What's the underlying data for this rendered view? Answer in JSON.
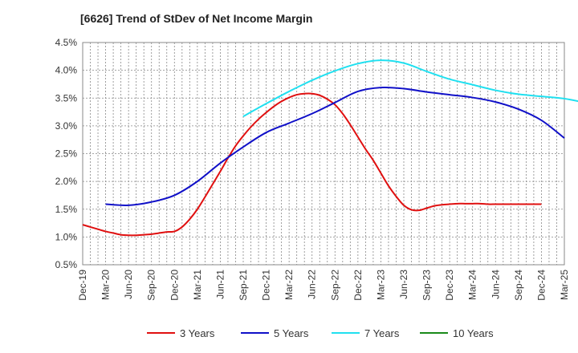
{
  "chart_data": {
    "type": "line",
    "title": "[6626]  Trend of StDev of Net Income Margin",
    "xlabel": "",
    "ylabel": "",
    "ylim": [
      0.5,
      4.5
    ],
    "yticks": [
      "0.5%",
      "1.0%",
      "1.5%",
      "2.0%",
      "2.5%",
      "3.0%",
      "3.5%",
      "4.0%",
      "4.5%"
    ],
    "ytick_values": [
      0.5,
      1.0,
      1.5,
      2.0,
      2.5,
      3.0,
      3.5,
      4.0,
      4.5
    ],
    "x_categories": [
      "Dec-19",
      "Mar-20",
      "Jun-20",
      "Sep-20",
      "Dec-20",
      "Mar-21",
      "Jun-21",
      "Sep-21",
      "Dec-21",
      "Mar-22",
      "Jun-22",
      "Sep-22",
      "Dec-22",
      "Mar-23",
      "Jun-23",
      "Sep-23",
      "Dec-23",
      "Mar-24",
      "Jun-24",
      "Sep-24",
      "Dec-24",
      "Mar-25"
    ],
    "grid": true,
    "legend_position": "bottom",
    "series": [
      {
        "name": "3 Years",
        "color": "#e01010",
        "points": [
          [
            "Dec-19",
            1.22
          ],
          [
            "Jan-20",
            1.18
          ],
          [
            "Feb-20",
            1.14
          ],
          [
            "Mar-20",
            1.1
          ],
          [
            "Apr-20",
            1.07
          ],
          [
            "May-20",
            1.04
          ],
          [
            "Jun-20",
            1.03
          ],
          [
            "Jul-20",
            1.03
          ],
          [
            "Aug-20",
            1.04
          ],
          [
            "Sep-20",
            1.05
          ],
          [
            "Oct-20",
            1.07
          ],
          [
            "Nov-20",
            1.09
          ],
          [
            "Dec-20",
            1.1
          ],
          [
            "Jan-21",
            1.18
          ],
          [
            "Feb-21",
            1.32
          ],
          [
            "Mar-21",
            1.5
          ],
          [
            "Apr-21",
            1.72
          ],
          [
            "May-21",
            1.95
          ],
          [
            "Jun-21",
            2.18
          ],
          [
            "Jul-21",
            2.42
          ],
          [
            "Aug-21",
            2.64
          ],
          [
            "Sep-21",
            2.82
          ],
          [
            "Oct-21",
            2.98
          ],
          [
            "Nov-21",
            3.12
          ],
          [
            "Dec-21",
            3.24
          ],
          [
            "Jan-22",
            3.35
          ],
          [
            "Feb-22",
            3.44
          ],
          [
            "Mar-22",
            3.51
          ],
          [
            "Apr-22",
            3.56
          ],
          [
            "May-22",
            3.58
          ],
          [
            "Jun-22",
            3.58
          ],
          [
            "Jul-22",
            3.55
          ],
          [
            "Aug-22",
            3.48
          ],
          [
            "Sep-22",
            3.38
          ],
          [
            "Oct-22",
            3.22
          ],
          [
            "Nov-22",
            3.02
          ],
          [
            "Dec-22",
            2.8
          ],
          [
            "Jan-23",
            2.58
          ],
          [
            "Feb-23",
            2.38
          ],
          [
            "Mar-23",
            2.15
          ],
          [
            "Apr-23",
            1.92
          ],
          [
            "May-23",
            1.73
          ],
          [
            "Jun-23",
            1.57
          ],
          [
            "Jul-23",
            1.49
          ],
          [
            "Aug-23",
            1.48
          ],
          [
            "Sep-23",
            1.52
          ],
          [
            "Oct-23",
            1.56
          ],
          [
            "Nov-23",
            1.58
          ],
          [
            "Dec-23",
            1.59
          ],
          [
            "Jan-24",
            1.6
          ],
          [
            "Feb-24",
            1.6
          ],
          [
            "Mar-24",
            1.6
          ],
          [
            "Apr-24",
            1.6
          ],
          [
            "May-24",
            1.59
          ],
          [
            "Jun-24",
            1.59
          ],
          [
            "Jul-24",
            1.59
          ],
          [
            "Aug-24",
            1.59
          ],
          [
            "Sep-24",
            1.59
          ],
          [
            "Oct-24",
            1.59
          ],
          [
            "Nov-24",
            1.59
          ],
          [
            "Dec-24",
            1.59
          ]
        ]
      },
      {
        "name": "5 Years",
        "color": "#1010c8",
        "points": [
          [
            "Mar-20",
            1.59
          ],
          [
            "Jun-20",
            1.57
          ],
          [
            "Sep-20",
            1.63
          ],
          [
            "Dec-20",
            1.75
          ],
          [
            "Mar-21",
            2.0
          ],
          [
            "Jun-21",
            2.33
          ],
          [
            "Sep-21",
            2.62
          ],
          [
            "Dec-21",
            2.88
          ],
          [
            "Mar-22",
            3.05
          ],
          [
            "Jun-22",
            3.22
          ],
          [
            "Sep-22",
            3.42
          ],
          [
            "Dec-22",
            3.62
          ],
          [
            "Mar-23",
            3.69
          ],
          [
            "Jun-23",
            3.67
          ],
          [
            "Sep-23",
            3.61
          ],
          [
            "Dec-23",
            3.56
          ],
          [
            "Mar-24",
            3.51
          ],
          [
            "Jun-24",
            3.43
          ],
          [
            "Sep-24",
            3.3
          ],
          [
            "Dec-24",
            3.1
          ],
          [
            "Mar-25",
            2.78
          ]
        ]
      },
      {
        "name": "7 Years",
        "color": "#20e0f0",
        "points": [
          [
            "Sep-21",
            3.17
          ],
          [
            "Dec-21",
            3.4
          ],
          [
            "Mar-22",
            3.62
          ],
          [
            "Jun-22",
            3.82
          ],
          [
            "Sep-22",
            3.99
          ],
          [
            "Dec-22",
            4.12
          ],
          [
            "Mar-23",
            4.18
          ],
          [
            "Jun-23",
            4.13
          ],
          [
            "Sep-23",
            3.98
          ],
          [
            "Dec-23",
            3.84
          ],
          [
            "Mar-24",
            3.74
          ],
          [
            "Jun-24",
            3.64
          ],
          [
            "Sep-24",
            3.57
          ],
          [
            "Dec-24",
            3.53
          ],
          [
            "Mar-25",
            3.49
          ],
          [
            "Jun-25",
            3.41
          ]
        ]
      },
      {
        "name": "10 Years",
        "color": "#1a8a1a",
        "points": []
      }
    ]
  }
}
